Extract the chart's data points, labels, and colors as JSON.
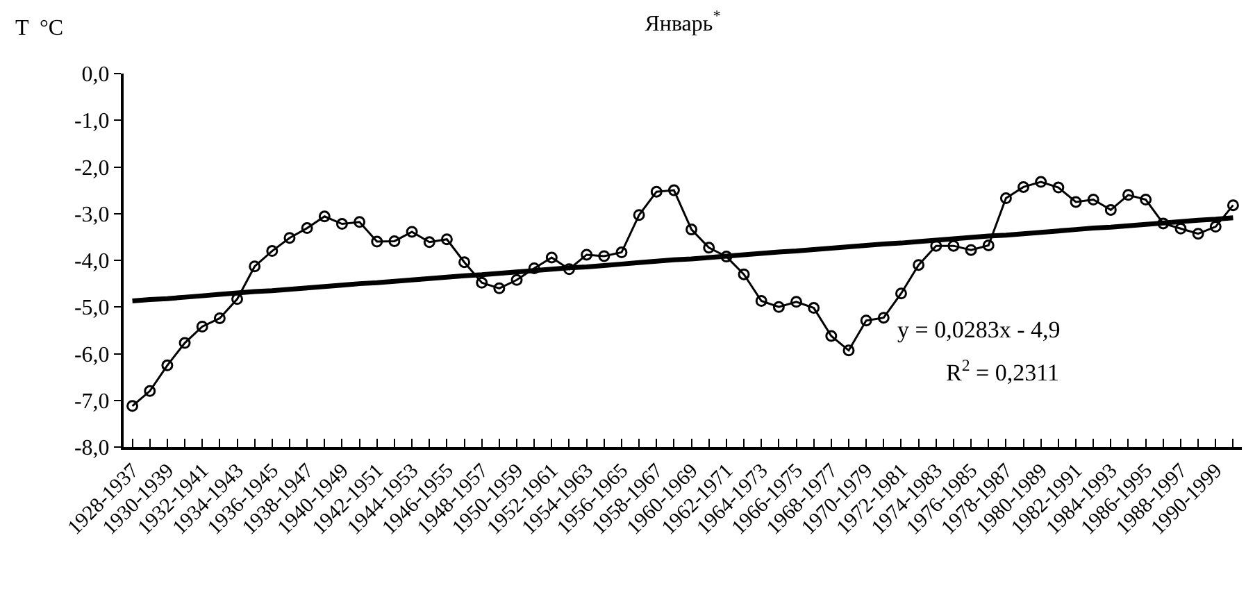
{
  "chart_data": {
    "type": "line",
    "title": "Январь$^{*}$",
    "ylabel": "T  °C",
    "categories": [
      "1928-1937",
      null,
      "1930-1939",
      null,
      "1932-1941",
      null,
      "1934-1943",
      null,
      "1936-1945",
      null,
      "1938-1947",
      null,
      "1940-1949",
      null,
      "1942-1951",
      null,
      "1944-1953",
      null,
      "1946-1955",
      null,
      "1948-1957",
      null,
      "1950-1959",
      null,
      "1952-1961",
      null,
      "1954-1963",
      null,
      "1956-1965",
      null,
      "1958-1967",
      null,
      "1960-1969",
      null,
      "1962-1971",
      null,
      "1964-1973",
      null,
      "1966-1975",
      null,
      "1968-1977",
      null,
      "1970-1979",
      null,
      "1972-1981",
      null,
      "1974-1983",
      null,
      "1976-1985",
      null,
      "1978-1987",
      null,
      "1980-1989",
      null,
      "1982-1991",
      null,
      "1984-1993",
      null,
      "1986-1995",
      null,
      "1988-1997",
      null,
      "1990-1999",
      null
    ],
    "series": [
      {
        "color": "#000000",
        "marker": "circle",
        "values": [
          -7.12,
          -6.8,
          -6.25,
          -5.77,
          -5.42,
          -5.24,
          -4.83,
          -4.13,
          -3.8,
          -3.52,
          -3.31,
          -3.06,
          -3.22,
          -3.18,
          -3.6,
          -3.59,
          -3.39,
          -3.61,
          -3.55,
          -4.04,
          -4.48,
          -4.6,
          -4.42,
          -4.17,
          -3.94,
          -4.19,
          -3.88,
          -3.91,
          -3.83,
          -3.03,
          -2.53,
          -2.5,
          -3.34,
          -3.73,
          -3.92,
          -4.3,
          -4.87,
          -5.0,
          -4.89,
          -5.02,
          -5.62,
          -5.93,
          -5.29,
          -5.23,
          -4.71,
          -4.1,
          -3.69,
          -3.69,
          -3.78,
          -3.68,
          -2.67,
          -2.43,
          -2.32,
          -2.44,
          -2.75,
          -2.7,
          -2.92,
          -2.6,
          -2.7,
          -3.21,
          -3.32,
          -3.43,
          -3.28,
          -2.82
        ]
      },
      {
        "color": "#000000",
        "marker": "none",
        "values": [
          -4.87,
          -4.84,
          -4.82,
          -4.79,
          -4.76,
          -4.73,
          -4.7,
          -4.67,
          -4.65,
          -4.62,
          -4.59,
          -4.56,
          -4.53,
          -4.5,
          -4.48,
          -4.45,
          -4.42,
          -4.39,
          -4.36,
          -4.33,
          -4.31,
          -4.28,
          -4.25,
          -4.22,
          -4.19,
          -4.16,
          -4.14,
          -4.11,
          -4.08,
          -4.05,
          -4.02,
          -3.99,
          -3.97,
          -3.94,
          -3.91,
          -3.88,
          -3.85,
          -3.82,
          -3.8,
          -3.77,
          -3.74,
          -3.71,
          -3.68,
          -3.65,
          -3.63,
          -3.6,
          -3.57,
          -3.54,
          -3.51,
          -3.48,
          -3.46,
          -3.43,
          -3.4,
          -3.37,
          -3.34,
          -3.31,
          -3.29,
          -3.26,
          -3.23,
          -3.2,
          -3.17,
          -3.14,
          -3.12,
          -3.09
        ]
      }
    ],
    "ylim": [
      -8,
      0
    ],
    "yticks": [
      {
        "value": 0,
        "label": "0,0"
      },
      {
        "value": -1,
        "label": "-1,0"
      },
      {
        "value": -2,
        "label": "-2,0"
      },
      {
        "value": -3,
        "label": "-3,0"
      },
      {
        "value": -4,
        "label": "-4,0"
      },
      {
        "value": -5,
        "label": "-5,0"
      },
      {
        "value": -6,
        "label": "-6,0"
      },
      {
        "value": -7,
        "label": "-7,0"
      },
      {
        "value": -8,
        "label": "-8,0"
      }
    ],
    "annotations": [
      "y = 0,0283x - 4,9",
      "R$^{2}$ = 0,2311"
    ],
    "line_style": "solid"
  }
}
